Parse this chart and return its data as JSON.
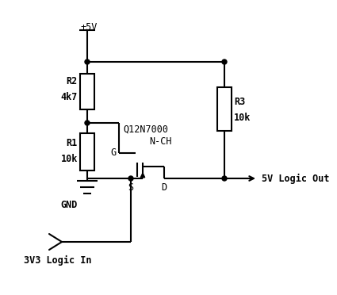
{
  "bg_color": "#ffffff",
  "line_color": "#000000",
  "text_color": "#000000",
  "lw": 1.5,
  "fig_width": 3.32,
  "fig_height": 3.52,
  "labels": {
    "vcc": "+5V",
    "r2": "R2",
    "r2_val": "4k7",
    "r1": "R1",
    "r1_val": "10k",
    "gnd": "GND",
    "r3": "R3",
    "r3_val": "10k",
    "transistor": "Q12N7000",
    "nch": "N-CH",
    "gate": "G",
    "source": "S",
    "drain": "D",
    "out": "5V Logic Out",
    "in": "3V3 Logic In"
  }
}
